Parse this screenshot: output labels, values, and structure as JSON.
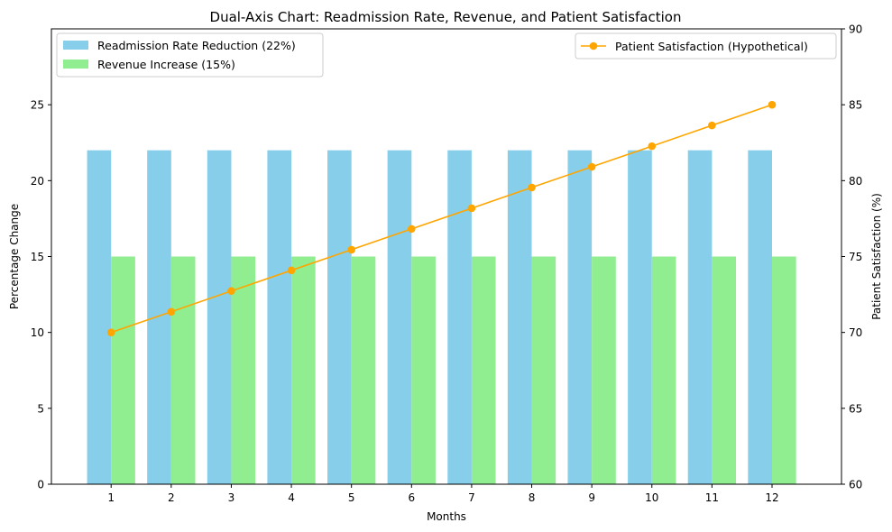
{
  "chart_data": {
    "type": "bar",
    "title": "Dual-Axis Chart: Readmission Rate, Revenue, and Patient Satisfaction",
    "xlabel": "Months",
    "ylabel": "Percentage Change",
    "y2label": "Patient Satisfaction (%)",
    "categories": [
      "1",
      "2",
      "3",
      "4",
      "5",
      "6",
      "7",
      "8",
      "9",
      "10",
      "11",
      "12"
    ],
    "ylim": [
      0,
      30
    ],
    "yticks": [
      0,
      5,
      10,
      15,
      20,
      25
    ],
    "y2lim": [
      60,
      90
    ],
    "y2ticks": [
      60,
      65,
      70,
      75,
      80,
      85,
      90
    ],
    "series": [
      {
        "name": "Readmission Rate Reduction (22%)",
        "type": "bar",
        "axis": "left",
        "color": "#87ceeb",
        "values": [
          22,
          22,
          22,
          22,
          22,
          22,
          22,
          22,
          22,
          22,
          22,
          22
        ]
      },
      {
        "name": "Revenue Increase (15%)",
        "type": "bar",
        "axis": "left",
        "color": "#90ee90",
        "values": [
          15,
          15,
          15,
          15,
          15,
          15,
          15,
          15,
          15,
          15,
          15,
          15
        ]
      },
      {
        "name": "Patient Satisfaction (Hypothetical)",
        "type": "line",
        "axis": "right",
        "color": "#ffa500",
        "values": [
          70,
          71.36,
          72.73,
          74.09,
          75.45,
          76.82,
          78.18,
          79.55,
          80.91,
          82.27,
          83.64,
          85
        ]
      }
    ],
    "legend_left_position": "top-left",
    "legend_right_position": "top-right"
  }
}
